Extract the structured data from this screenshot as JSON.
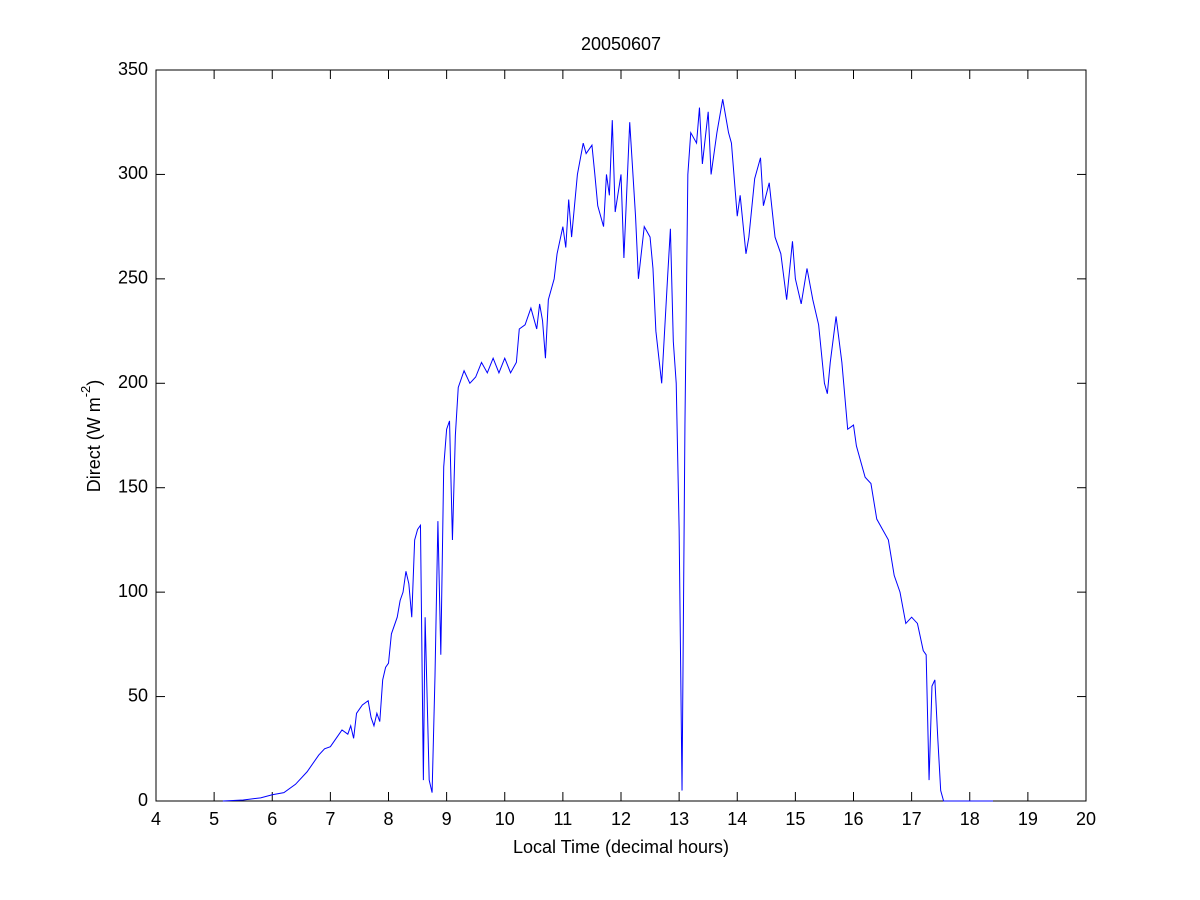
{
  "chart_data": {
    "type": "line",
    "title": "20050607",
    "xlabel": "Local Time (decimal hours)",
    "ylabel": {
      "text": "Direct (W m",
      "superscript": "-2",
      "suffix": ")"
    },
    "xlim": [
      4,
      20
    ],
    "xticks": [
      4,
      5,
      6,
      7,
      8,
      9,
      10,
      11,
      12,
      13,
      14,
      15,
      16,
      17,
      18,
      19,
      20
    ],
    "ylim": [
      0,
      350
    ],
    "yticks": [
      0,
      50,
      100,
      150,
      200,
      250,
      300,
      350
    ],
    "grid": false,
    "series": [
      {
        "color": "#0000ff",
        "x": [
          5.15,
          5.5,
          5.8,
          6.0,
          6.2,
          6.4,
          6.6,
          6.8,
          6.9,
          7.0,
          7.1,
          7.2,
          7.3,
          7.35,
          7.4,
          7.45,
          7.55,
          7.65,
          7.7,
          7.75,
          7.8,
          7.85,
          7.9,
          7.95,
          8.0,
          8.05,
          8.15,
          8.2,
          8.25,
          8.3,
          8.35,
          8.4,
          8.45,
          8.5,
          8.55,
          8.6,
          8.63,
          8.7,
          8.75,
          8.8,
          8.85,
          8.9,
          8.95,
          9.0,
          9.05,
          9.1,
          9.15,
          9.2,
          9.3,
          9.4,
          9.5,
          9.6,
          9.7,
          9.8,
          9.9,
          10.0,
          10.1,
          10.2,
          10.25,
          10.35,
          10.45,
          10.55,
          10.6,
          10.65,
          10.7,
          10.75,
          10.85,
          10.9,
          11.0,
          11.05,
          11.1,
          11.15,
          11.25,
          11.35,
          11.4,
          11.5,
          11.55,
          11.6,
          11.7,
          11.75,
          11.8,
          11.85,
          11.9,
          12.0,
          12.05,
          12.15,
          12.25,
          12.3,
          12.4,
          12.5,
          12.55,
          12.6,
          12.7,
          12.8,
          12.85,
          12.9,
          12.95,
          13.0,
          13.05,
          13.1,
          13.15,
          13.2,
          13.3,
          13.35,
          13.4,
          13.5,
          13.55,
          13.65,
          13.75,
          13.85,
          13.9,
          14.0,
          14.05,
          14.15,
          14.2,
          14.3,
          14.4,
          14.45,
          14.55,
          14.65,
          14.75,
          14.85,
          14.95,
          15.0,
          15.1,
          15.2,
          15.3,
          15.4,
          15.5,
          15.55,
          15.6,
          15.7,
          15.8,
          15.9,
          16.0,
          16.05,
          16.1,
          16.2,
          16.3,
          16.4,
          16.5,
          16.6,
          16.7,
          16.8,
          16.9,
          17.0,
          17.1,
          17.2,
          17.25,
          17.3,
          17.35,
          17.4,
          17.45,
          17.5,
          17.55,
          17.8,
          18.4
        ],
        "values": [
          0,
          0.5,
          1.5,
          3,
          4,
          8,
          14,
          22,
          25,
          26,
          30,
          34,
          32,
          36,
          30,
          42,
          46,
          48,
          40,
          36,
          42,
          38,
          58,
          64,
          66,
          80,
          88,
          96,
          100,
          110,
          104,
          88,
          125,
          130,
          132,
          10,
          88,
          10,
          4,
          60,
          134,
          70,
          160,
          178,
          182,
          125,
          175,
          198,
          206,
          200,
          203,
          210,
          205,
          212,
          205,
          212,
          205,
          210,
          226,
          228,
          236,
          226,
          238,
          230,
          212,
          240,
          250,
          262,
          275,
          265,
          288,
          270,
          300,
          315,
          310,
          314,
          300,
          285,
          275,
          300,
          290,
          326,
          282,
          300,
          260,
          325,
          280,
          250,
          275,
          270,
          255,
          225,
          200,
          250,
          274,
          220,
          200,
          130,
          5,
          180,
          300,
          320,
          315,
          332,
          305,
          330,
          300,
          320,
          336,
          320,
          315,
          280,
          290,
          262,
          270,
          298,
          308,
          285,
          296,
          270,
          262,
          240,
          268,
          250,
          238,
          255,
          240,
          228,
          200,
          195,
          210,
          232,
          210,
          178,
          180,
          170,
          165,
          155,
          152,
          135,
          130,
          125,
          108,
          100,
          85,
          88,
          85,
          72,
          70,
          10,
          55,
          58,
          30,
          5,
          0,
          0,
          0
        ]
      }
    ]
  }
}
